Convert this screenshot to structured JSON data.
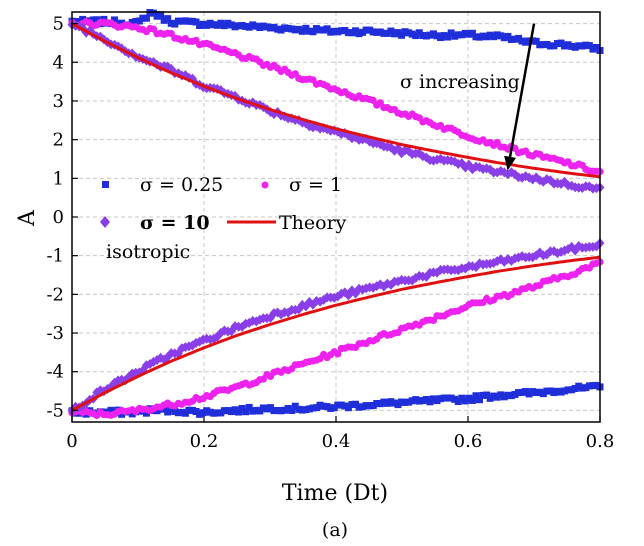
{
  "caption": "(a)",
  "chart_data": {
    "type": "scatter",
    "xlabel": "Time (Dt)",
    "ylabel": "A",
    "xlim": [
      0,
      0.8
    ],
    "ylim": [
      -5.3,
      5.3
    ],
    "xticks": [
      0,
      0.2,
      0.4,
      0.6,
      0.8
    ],
    "xtick_labels": [
      "0",
      "0.2",
      "0.4",
      "0.6",
      "0.8"
    ],
    "yticks": [
      5,
      4,
      3,
      2,
      1,
      0,
      -1,
      -2,
      -3,
      -4,
      -5
    ],
    "ytick_labels": [
      "5",
      "4",
      "3",
      "2",
      "1",
      "0",
      "-1",
      "-2",
      "-3",
      "-4",
      "-5"
    ],
    "grid": true,
    "legend_position": "middle-left",
    "annotation": {
      "text": "σ increasing",
      "arrow_from": [
        0.7,
        5.0
      ],
      "arrow_to": [
        0.66,
        1.2
      ]
    },
    "extra_text": "isotropic",
    "series": [
      {
        "name": "σ = 0.25",
        "marker": "square",
        "color": "#1f2ed8",
        "x": [
          0,
          0.05,
          0.1,
          0.12,
          0.15,
          0.2,
          0.25,
          0.3,
          0.35,
          0.4,
          0.45,
          0.5,
          0.55,
          0.6,
          0.65,
          0.7,
          0.75,
          0.8
        ],
        "upper": [
          5.05,
          5.05,
          5.0,
          5.3,
          5.05,
          5.0,
          4.95,
          4.9,
          4.85,
          4.8,
          4.8,
          4.75,
          4.7,
          4.7,
          4.65,
          4.5,
          4.45,
          4.35
        ],
        "lower": [
          -5.05,
          -5.05,
          -5.05,
          -5.0,
          -5.0,
          -5.05,
          -5.0,
          -4.95,
          -4.95,
          -4.9,
          -4.85,
          -4.8,
          -4.75,
          -4.7,
          -4.6,
          -4.55,
          -4.45,
          -4.4
        ]
      },
      {
        "name": "σ = 1",
        "marker": "circle",
        "color": "#ee22ee",
        "x": [
          0,
          0.05,
          0.1,
          0.15,
          0.2,
          0.25,
          0.3,
          0.35,
          0.4,
          0.45,
          0.5,
          0.55,
          0.6,
          0.65,
          0.7,
          0.75,
          0.8
        ],
        "upper": [
          5.0,
          5.0,
          4.9,
          4.7,
          4.45,
          4.2,
          3.9,
          3.6,
          3.3,
          3.0,
          2.7,
          2.4,
          2.1,
          1.85,
          1.6,
          1.4,
          1.15
        ],
        "lower": [
          -5.05,
          -5.1,
          -5.0,
          -4.85,
          -4.65,
          -4.4,
          -4.1,
          -3.8,
          -3.5,
          -3.2,
          -2.9,
          -2.6,
          -2.3,
          -2.05,
          -1.8,
          -1.5,
          -1.2
        ]
      },
      {
        "name": "σ = 10",
        "marker": "diamond",
        "color": "#8a3ee8",
        "x": [
          0,
          0.05,
          0.1,
          0.15,
          0.2,
          0.25,
          0.3,
          0.35,
          0.4,
          0.45,
          0.5,
          0.55,
          0.6,
          0.65,
          0.7,
          0.75,
          0.8
        ],
        "upper": [
          5.0,
          4.6,
          4.15,
          3.8,
          3.4,
          3.1,
          2.75,
          2.45,
          2.2,
          1.95,
          1.7,
          1.5,
          1.3,
          1.15,
          1.0,
          0.85,
          0.72
        ],
        "lower": [
          -5.0,
          -4.45,
          -4.0,
          -3.55,
          -3.2,
          -2.85,
          -2.55,
          -2.3,
          -2.05,
          -1.85,
          -1.65,
          -1.45,
          -1.3,
          -1.15,
          -1.0,
          -0.85,
          -0.72
        ]
      },
      {
        "name": "Theory",
        "marker": "line",
        "color": "#e01010",
        "x": [
          0,
          0.05,
          0.1,
          0.15,
          0.2,
          0.25,
          0.3,
          0.35,
          0.4,
          0.45,
          0.5,
          0.55,
          0.6,
          0.65,
          0.7,
          0.75,
          0.8
        ],
        "upper": [
          5.0,
          4.54,
          4.12,
          3.73,
          3.38,
          3.06,
          2.78,
          2.52,
          2.28,
          2.07,
          1.87,
          1.7,
          1.54,
          1.39,
          1.26,
          1.14,
          1.04
        ],
        "lower": [
          -5.0,
          -4.54,
          -4.12,
          -3.73,
          -3.38,
          -3.06,
          -2.78,
          -2.52,
          -2.28,
          -2.07,
          -1.87,
          -1.7,
          -1.54,
          -1.39,
          -1.26,
          -1.14,
          -1.04
        ]
      }
    ]
  }
}
